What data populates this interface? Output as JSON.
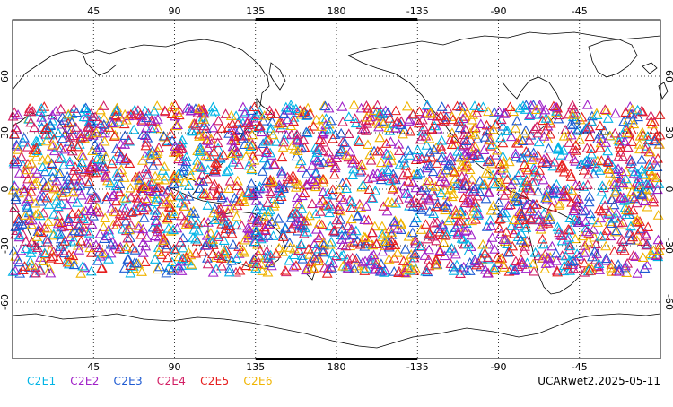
{
  "map": {
    "projection": "cylindrical-equidistant",
    "center_longitude": 180,
    "lon_range": [
      0,
      360
    ],
    "lat_range": [
      -90,
      90
    ],
    "grid": "dotted",
    "lon_ticks": [
      "45",
      "90",
      "135",
      "180",
      "-135",
      "-90",
      "-45"
    ],
    "lat_ticks": [
      "60",
      "30",
      "0",
      "-30",
      "-60"
    ],
    "marker": "open-triangle",
    "occultation_lat_band": [
      -45,
      45
    ]
  },
  "legend": {
    "items": [
      {
        "label": "C2E1",
        "color": "#00b4e6"
      },
      {
        "label": "C2E2",
        "color": "#a020c8"
      },
      {
        "label": "C2E3",
        "color": "#1e5ad2"
      },
      {
        "label": "C2E4",
        "color": "#d21e64"
      },
      {
        "label": "C2E5",
        "color": "#e61e1e"
      },
      {
        "label": "C2E6",
        "color": "#f0b400"
      }
    ]
  },
  "caption": "UCARwet2.2025-05-11"
}
